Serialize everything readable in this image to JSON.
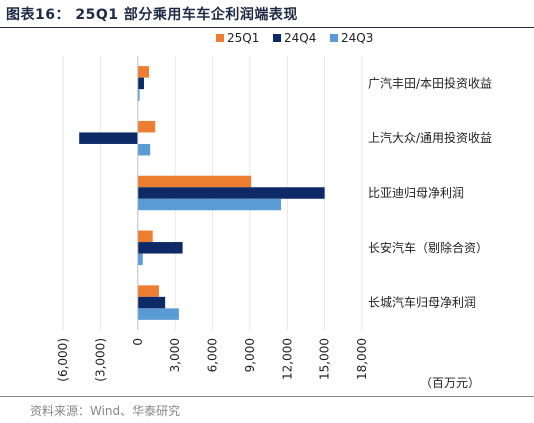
{
  "title": "图表16： 25Q1 部分乘用车车企利润端表现",
  "source": "资料来源：Wind、华泰研究",
  "unit_label": "（百万元）",
  "chart_data": {
    "type": "bar",
    "orientation": "horizontal",
    "categories": [
      "广汽丰田/本田投资收益",
      "上汽大众/通用投资收益",
      "比亚迪归母净利润",
      "长安汽车（剔除合资）",
      "长城汽车归母净利润"
    ],
    "series": [
      {
        "name": "25Q1",
        "color": "#ed7d31",
        "values": [
          900,
          1400,
          9100,
          1200,
          1700
        ]
      },
      {
        "name": "24Q4",
        "color": "#0d2a66",
        "values": [
          500,
          -4700,
          15000,
          3600,
          2200
        ]
      },
      {
        "name": "24Q3",
        "color": "#5b9bd5",
        "values": [
          150,
          1000,
          11500,
          400,
          3300
        ]
      }
    ],
    "xlim": [
      -6000,
      18000
    ],
    "x_ticks": [
      -6000,
      -3000,
      0,
      3000,
      6000,
      9000,
      12000,
      15000,
      18000
    ],
    "x_tick_labels": [
      "(6,000)",
      "(3,000)",
      "0",
      "3,000",
      "6,000",
      "9,000",
      "12,000",
      "15,000",
      "18,000"
    ],
    "legend_position": "top",
    "grid": false
  }
}
